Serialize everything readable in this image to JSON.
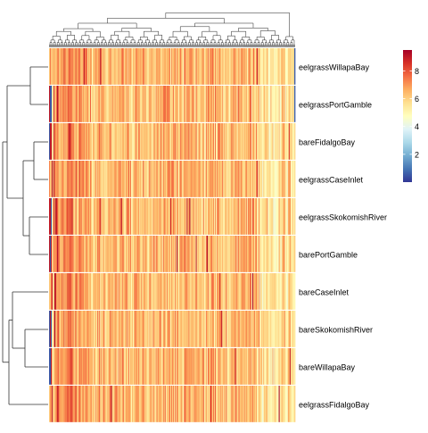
{
  "chart_data": {
    "type": "heatmap",
    "title": "",
    "xlabel": "",
    "ylabel": "",
    "rows": [
      "eelgrassWillapaBay",
      "eelgrassPortGamble",
      "bareFidalgoBay",
      "eelgrassCaseInlet",
      "eelgrassSkokomishRiver",
      "barePortGamble",
      "bareCaseInlet",
      "bareSkokomishRiver",
      "bareWillapaBay",
      "eelgrassFidalgoBay"
    ],
    "column_count": 270,
    "value_range": [
      0,
      9.5
    ],
    "legend": {
      "ticks": [
        2,
        4,
        6,
        8
      ],
      "position": "right",
      "colors": [
        "#313695",
        "#4575b4",
        "#74add1",
        "#abd9e9",
        "#e0f3f8",
        "#ffffbf",
        "#fee090",
        "#fdae61",
        "#f46d43",
        "#d73027",
        "#a50026"
      ]
    },
    "row_summary": {
      "typical_value": 6.5,
      "low_outlier_columns": "first few columns near 0–1 in several rows",
      "high_outlier_columns": "a few columns near 9 in several rows"
    },
    "dendrograms": {
      "row": true,
      "column": true
    },
    "grid": false
  }
}
